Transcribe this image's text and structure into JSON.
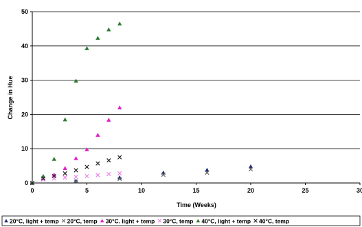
{
  "chart_data": {
    "type": "scatter",
    "title": "",
    "xlabel": "Time (Weeks)",
    "ylabel": "Change in Hue",
    "xlim": [
      0,
      30
    ],
    "ylim": [
      0,
      50
    ],
    "xticks": [
      0,
      5,
      10,
      15,
      20,
      25,
      30
    ],
    "yticks": [
      0,
      10,
      20,
      30,
      40,
      50
    ],
    "grid": "horizontal",
    "legend": "bottom",
    "series": [
      {
        "name": "20°C, light + temp",
        "marker": "triangle",
        "color": "#1f2a7a",
        "x": [
          0,
          4,
          8,
          12,
          16,
          20
        ],
        "y": [
          0,
          0.6,
          1.6,
          3.0,
          3.8,
          4.8
        ]
      },
      {
        "name": "20°C, temp",
        "marker": "cross",
        "color": "#666666",
        "x": [
          0,
          4,
          8,
          12,
          16,
          20
        ],
        "y": [
          0,
          0.4,
          1.2,
          2.4,
          3.0,
          4.0
        ]
      },
      {
        "name": "30°C. light + temp",
        "marker": "triangle",
        "color": "#e020c8",
        "x": [
          0,
          1,
          2,
          3,
          4,
          5,
          6,
          7,
          8
        ],
        "y": [
          0,
          1.5,
          2.4,
          4.3,
          7.2,
          9.8,
          14.0,
          18.4,
          22.0
        ]
      },
      {
        "name": "30°C, temp",
        "marker": "cross",
        "color": "#f080e8",
        "x": [
          0,
          1,
          2,
          3,
          4,
          5,
          6,
          7,
          8
        ],
        "y": [
          0,
          1.0,
          1.3,
          1.6,
          1.8,
          2.0,
          2.3,
          2.6,
          2.8
        ]
      },
      {
        "name": "40°C, light + temp",
        "marker": "triangle",
        "color": "#2e7d32",
        "x": [
          0,
          1,
          2,
          3,
          4,
          5,
          6,
          7,
          8
        ],
        "y": [
          0,
          2.0,
          7.0,
          18.5,
          29.8,
          39.3,
          42.3,
          44.8,
          46.5
        ]
      },
      {
        "name": "40°C, temp",
        "marker": "cross",
        "color": "#222222",
        "x": [
          0,
          1,
          2,
          3,
          4,
          5,
          6,
          7,
          8
        ],
        "y": [
          0,
          1.3,
          2.0,
          2.8,
          3.7,
          4.7,
          5.7,
          6.6,
          7.5
        ]
      }
    ]
  }
}
